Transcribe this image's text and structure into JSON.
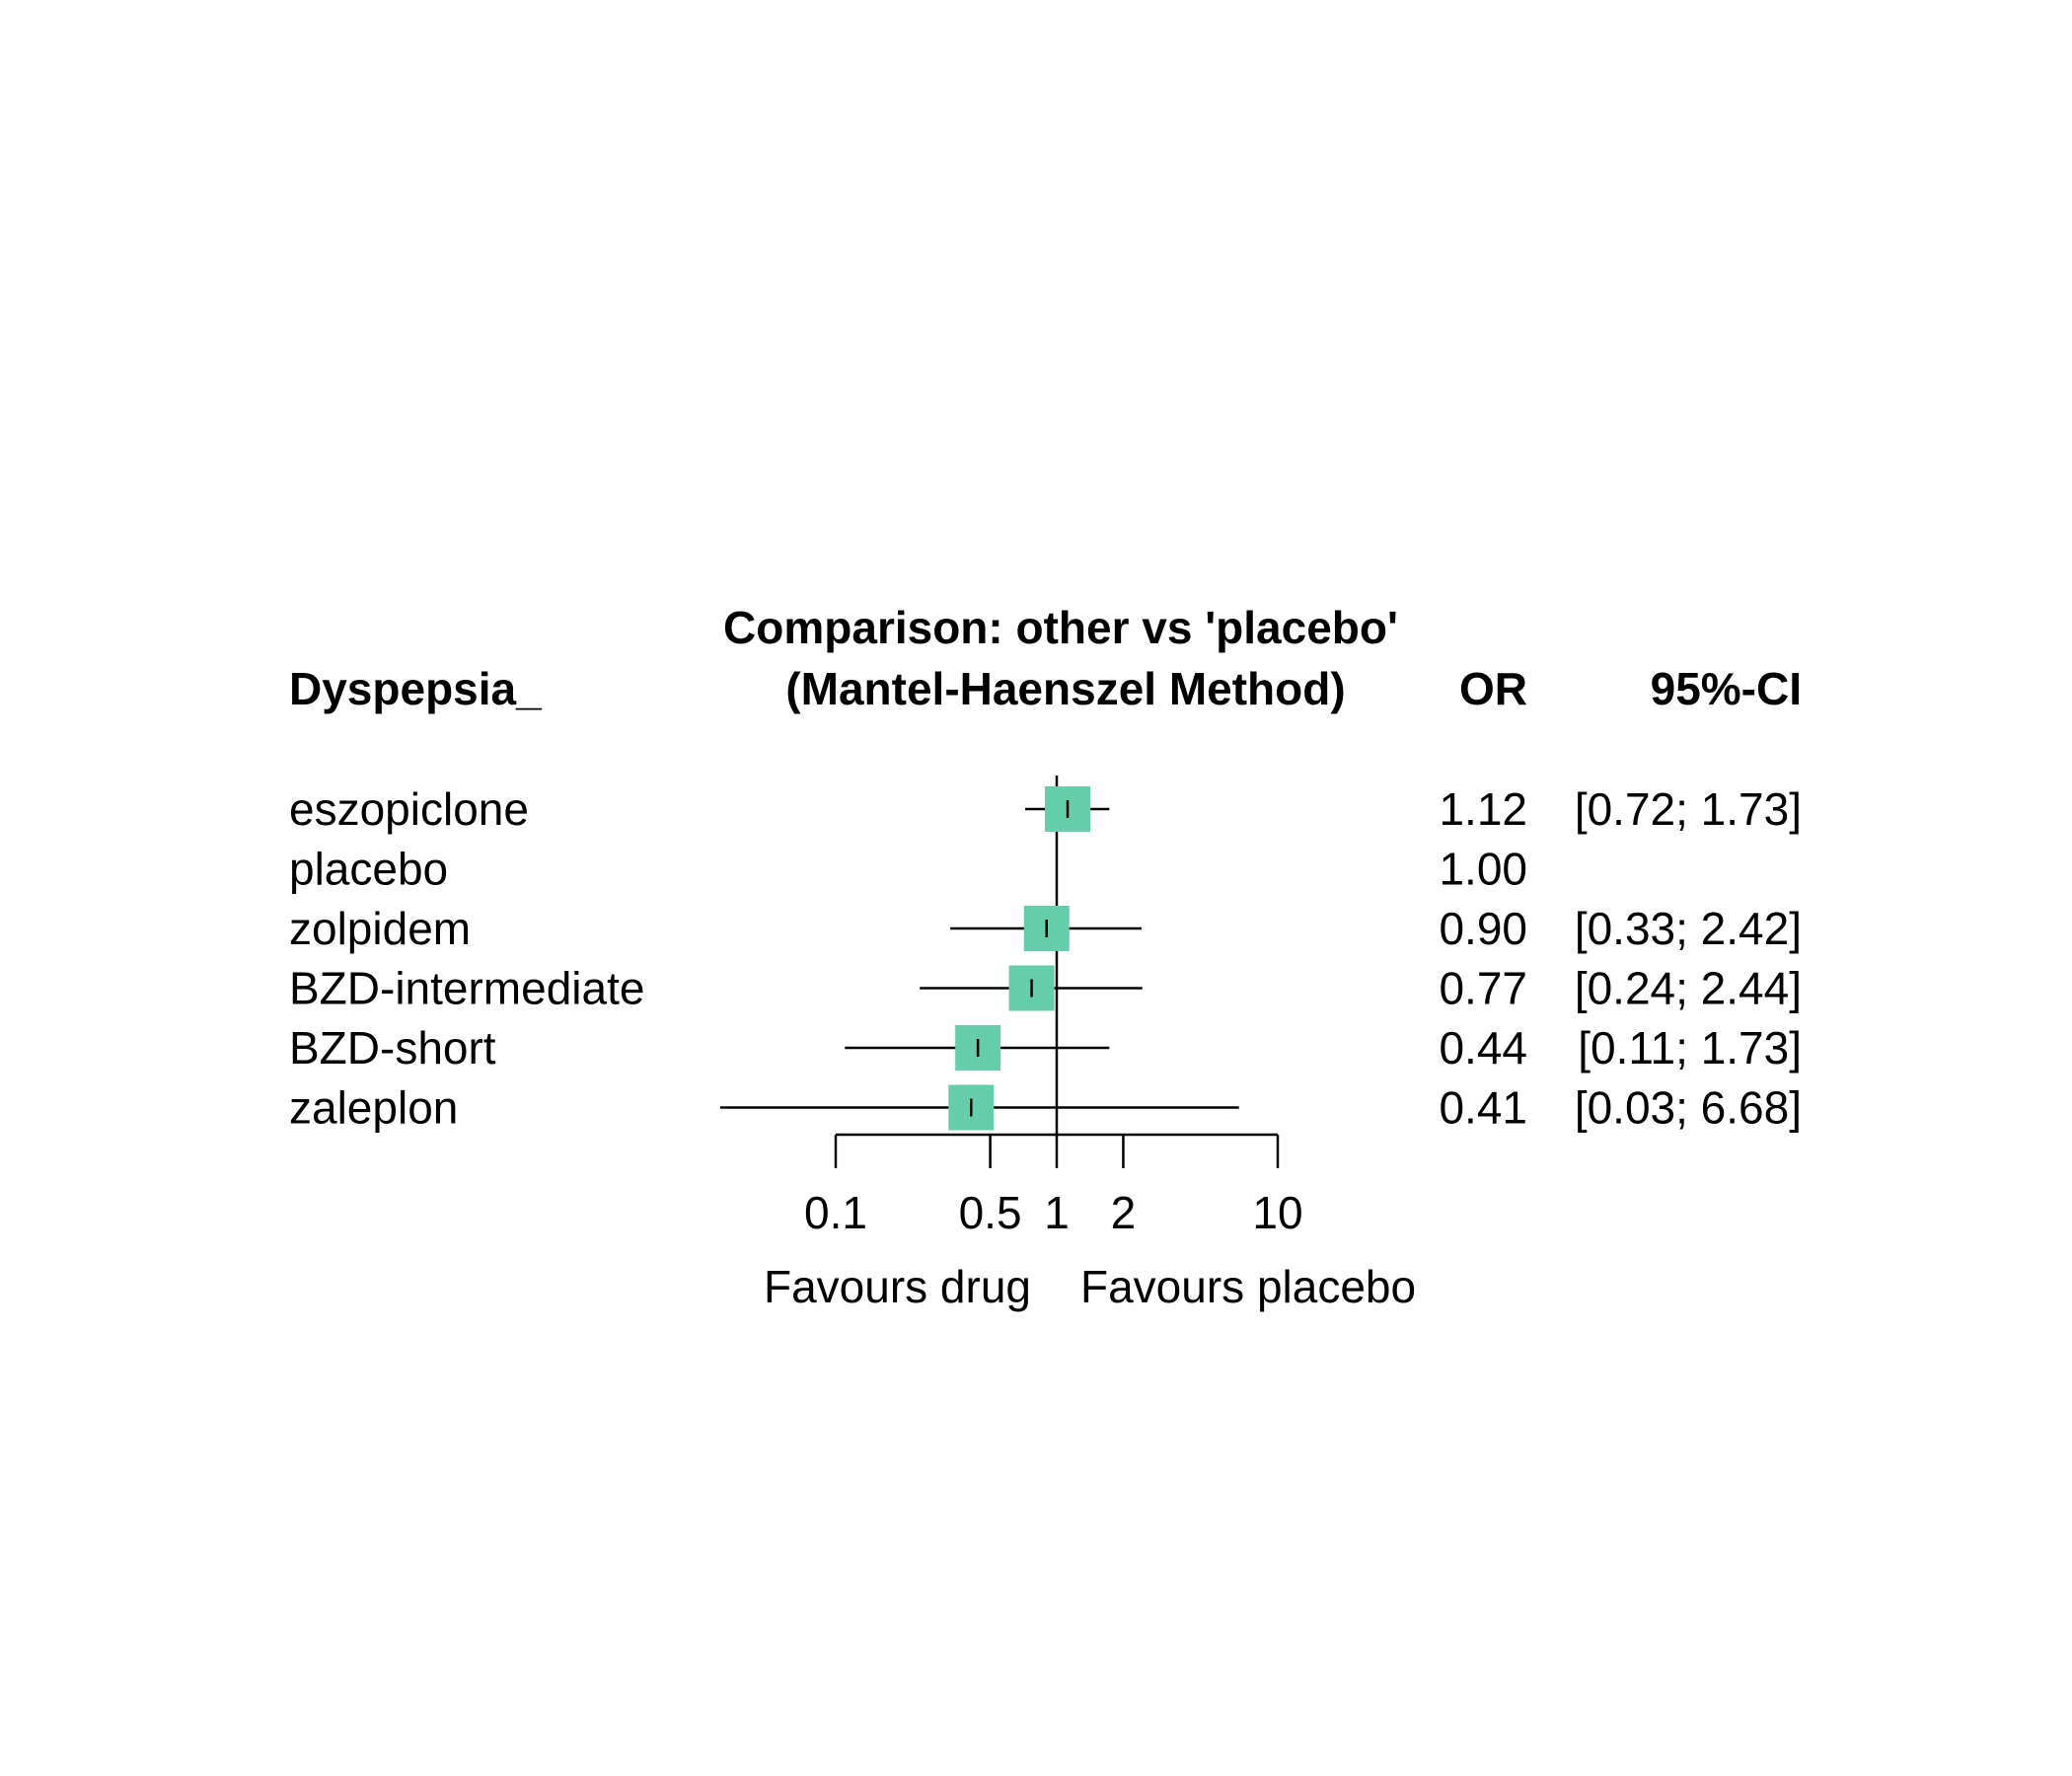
{
  "chart_data": {
    "type": "forest",
    "title_line1": "Comparison: other vs 'placebo'",
    "title_line2": "(Mantel-Haenszel Method)",
    "left_header": "Dyspepsia_",
    "or_header": "OR",
    "ci_header": "95%-CI",
    "x_scale": "log",
    "xlim": [
      0.1,
      10
    ],
    "x_ticks": [
      {
        "value": 0.1,
        "label": "0.1"
      },
      {
        "value": 0.5,
        "label": "0.5"
      },
      {
        "value": 1,
        "label": "1"
      },
      {
        "value": 2,
        "label": "2"
      },
      {
        "value": 10,
        "label": "10"
      }
    ],
    "x_label_left": "Favours drug",
    "x_label_right": "Favours placebo",
    "box_color": "#66CDAA",
    "rows": [
      {
        "name": "eszopiclone",
        "or": 1.12,
        "lower": 0.72,
        "upper": 1.73,
        "or_text": "1.12",
        "ci_text": "[0.72; 1.73]"
      },
      {
        "name": "placebo",
        "or": 1.0,
        "lower": null,
        "upper": null,
        "or_text": "1.00",
        "ci_text": ""
      },
      {
        "name": "zolpidem",
        "or": 0.9,
        "lower": 0.33,
        "upper": 2.42,
        "or_text": "0.90",
        "ci_text": "[0.33; 2.42]"
      },
      {
        "name": "BZD-intermediate",
        "or": 0.77,
        "lower": 0.24,
        "upper": 2.44,
        "or_text": "0.77",
        "ci_text": "[0.24; 2.44]"
      },
      {
        "name": "BZD-short",
        "or": 0.44,
        "lower": 0.11,
        "upper": 1.73,
        "or_text": "0.44",
        "ci_text": "[0.11; 1.73]"
      },
      {
        "name": "zaleplon",
        "or": 0.41,
        "lower": 0.03,
        "upper": 6.68,
        "or_text": "0.41",
        "ci_text": "[0.03; 6.68]"
      }
    ]
  }
}
